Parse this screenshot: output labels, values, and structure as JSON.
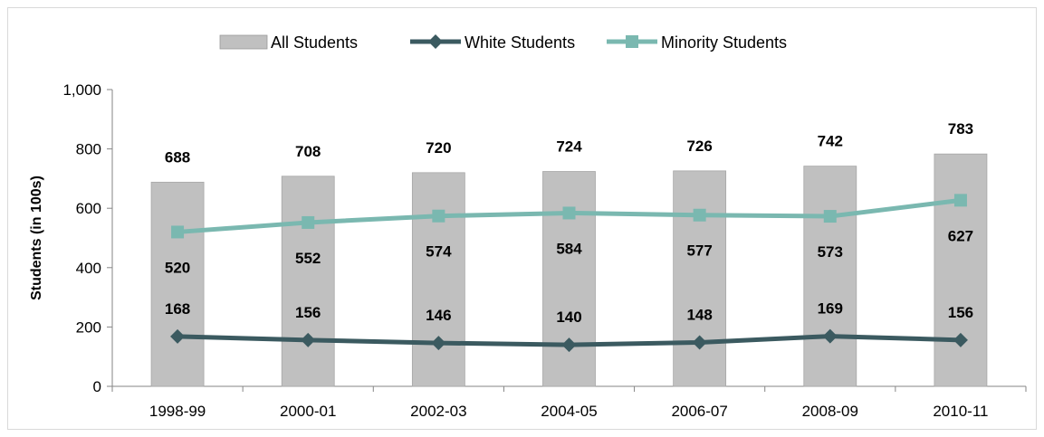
{
  "chart_data": {
    "type": "bar",
    "categories": [
      "1998-99",
      "2000-01",
      "2002-03",
      "2004-05",
      "2006-07",
      "2008-09",
      "2010-11"
    ],
    "series": [
      {
        "name": "All Students",
        "kind": "bar",
        "values": [
          688,
          708,
          720,
          724,
          726,
          742,
          783
        ],
        "color": "#c0c0c0"
      },
      {
        "name": "White Students",
        "kind": "line",
        "marker": "diamond",
        "values": [
          168,
          156,
          146,
          140,
          148,
          169,
          156
        ],
        "color": "#3b5a60"
      },
      {
        "name": "Minority Students",
        "kind": "line",
        "marker": "square",
        "values": [
          520,
          552,
          574,
          584,
          577,
          573,
          627
        ],
        "color": "#7ab8b0"
      }
    ],
    "ylabel": "Students (in 100s)",
    "xlabel": "",
    "ylim": [
      0,
      1000
    ],
    "yticks": [
      "0",
      "200",
      "400",
      "600",
      "800",
      "1,000"
    ],
    "ytick_values": [
      0,
      200,
      400,
      600,
      800,
      1000
    ],
    "grid": false,
    "legend": "top-center"
  }
}
